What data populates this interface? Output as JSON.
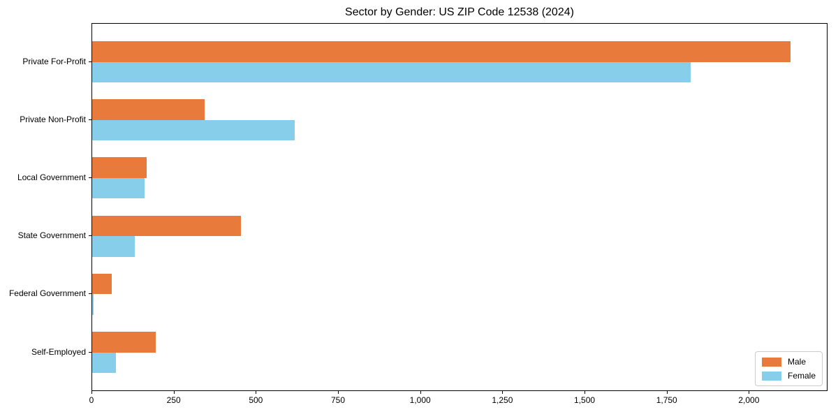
{
  "chart_data": {
    "type": "bar",
    "orientation": "horizontal",
    "title": "Sector by Gender: US ZIP Code 12538 (2024)",
    "categories": [
      "Private For-Profit",
      "Private Non-Profit",
      "Local Government",
      "State Government",
      "Federal Government",
      "Self-Employed"
    ],
    "series": [
      {
        "name": "Male",
        "color": "#e87a3c",
        "values": [
          2125,
          342,
          165,
          452,
          60,
          194
        ]
      },
      {
        "name": "Female",
        "color": "#87ceeb",
        "values": [
          1820,
          617,
          159,
          129,
          4,
          72
        ]
      }
    ],
    "xlabel": "",
    "ylabel": "",
    "xlim": [
      0,
      2235
    ],
    "xticks": [
      0,
      250,
      500,
      750,
      1000,
      1250,
      1500,
      1750,
      2000
    ],
    "xtick_labels": [
      "0",
      "250",
      "500",
      "750",
      "1,000",
      "1,250",
      "1,500",
      "1,750",
      "2,000"
    ],
    "grid": false,
    "legend": {
      "position": "lower right",
      "entries": [
        "Male",
        "Female"
      ]
    },
    "colors": {
      "male": "#e87a3c",
      "female": "#87ceeb",
      "spine": "#000000",
      "background": "#ffffff"
    }
  }
}
